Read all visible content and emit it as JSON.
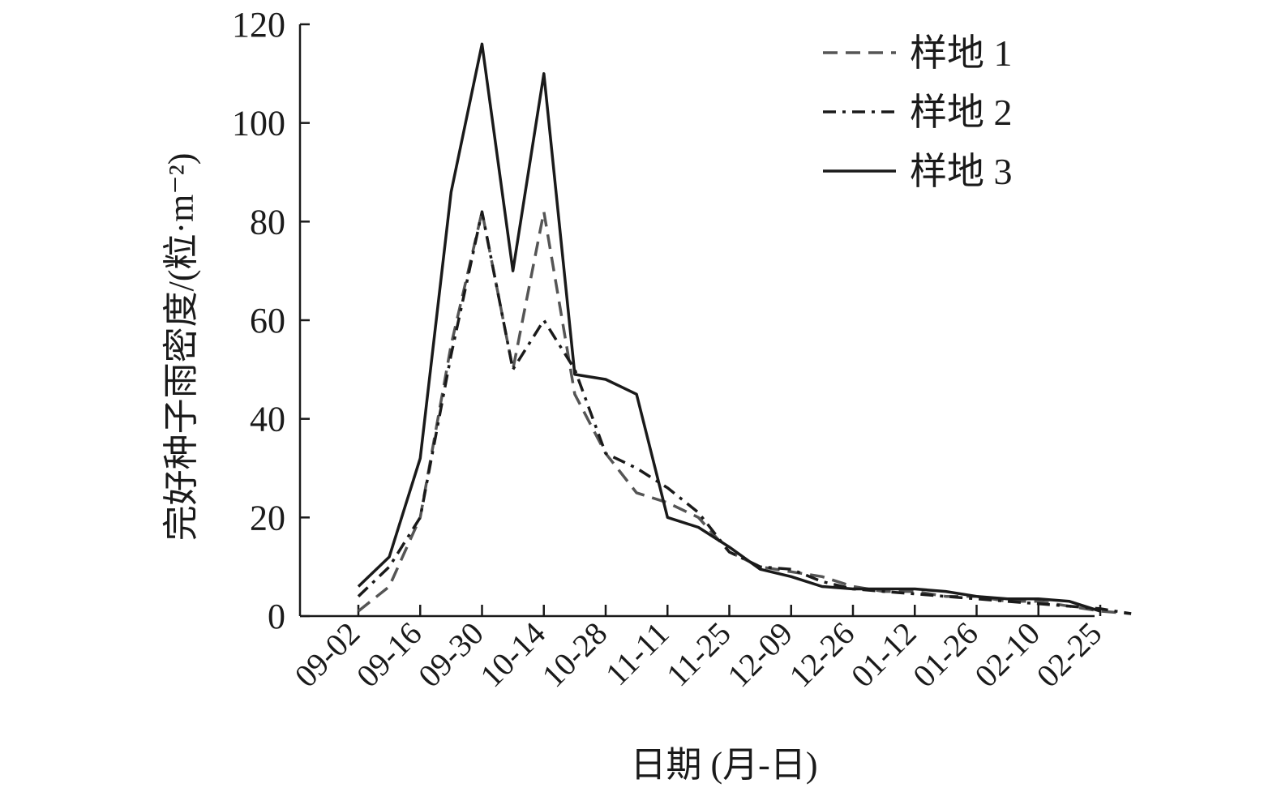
{
  "chart_data": {
    "type": "line",
    "title": "",
    "xlabel": "日期 (月-日)",
    "ylabel": "完好种子雨密度/(粒·m⁻²)",
    "ylim": [
      0,
      120
    ],
    "yticks": [
      "0",
      "20",
      "40",
      "60",
      "80",
      "100",
      "120"
    ],
    "xticks": [
      "09-02",
      "09-16",
      "09-30",
      "10-14",
      "10-28",
      "11-11",
      "11-25",
      "12-09",
      "12-26",
      "01-12",
      "01-26",
      "02-10",
      "02-25"
    ],
    "grid": false,
    "legend_position": "top-right",
    "series": [
      {
        "name": "样地 1",
        "line_style": "dashed",
        "color": "#555555",
        "values": [
          1,
          6,
          20,
          55,
          82,
          50,
          82,
          45,
          33,
          25,
          23,
          20,
          13,
          10,
          9,
          8,
          6,
          5,
          5,
          4,
          4,
          3,
          3,
          2,
          1,
          0.5
        ]
      },
      {
        "name": "样地 2",
        "line_style": "dashdot",
        "color": "#1a1a1a",
        "values": [
          4,
          10,
          20,
          53,
          82,
          50,
          60,
          50,
          33,
          30,
          26,
          21,
          13,
          10,
          9.5,
          7,
          5.5,
          5,
          4.5,
          4,
          3.5,
          3,
          2.5,
          2,
          1.5,
          0.5
        ]
      },
      {
        "name": "样地 3",
        "line_style": "solid",
        "color": "#1a1a1a",
        "values": [
          6,
          12,
          32,
          86,
          116,
          70,
          110,
          49,
          48,
          45,
          20,
          18,
          14,
          9.5,
          8,
          6,
          5.5,
          5.5,
          5.5,
          5,
          4,
          3.5,
          3.5,
          3,
          1
        ]
      }
    ]
  }
}
